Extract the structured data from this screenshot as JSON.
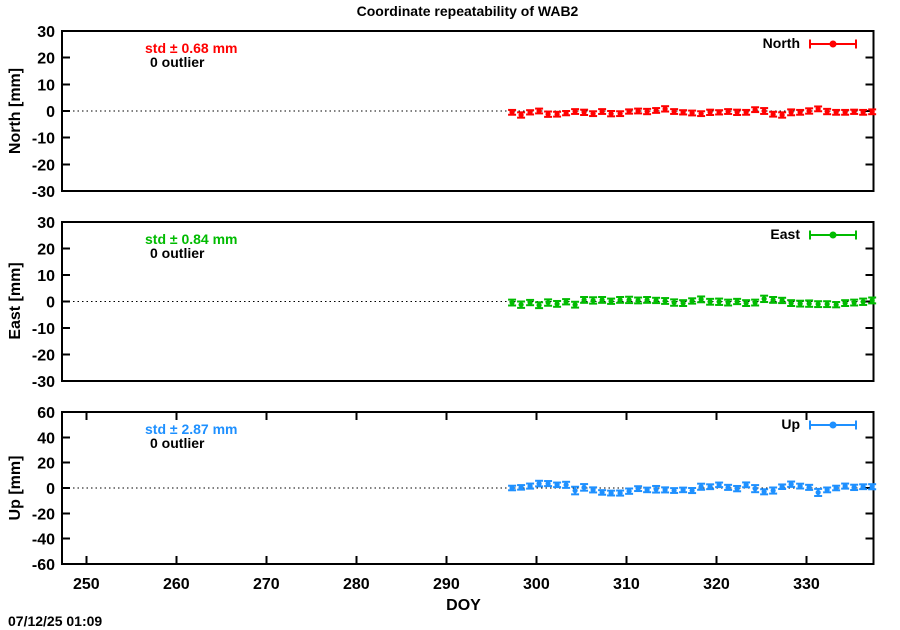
{
  "title": "Coordinate repeatability of WAB2",
  "xlabel": "DOY",
  "timestamp": "07/12/25 01:09",
  "chart_data": [
    {
      "type": "scatter",
      "name": "North",
      "ylabel": "North [mm]",
      "std_label": "std ± 0.68 mm",
      "outlier_label": "0 outlier",
      "color": "#ff0000",
      "ylim": [
        -30,
        30
      ],
      "yticks": [
        30,
        20,
        10,
        0,
        -10,
        -20,
        -30
      ],
      "xlim": [
        247.3,
        337.45
      ],
      "xticks": [
        250,
        260,
        270,
        280,
        290,
        300,
        310,
        320,
        330
      ],
      "x_start": 297.3,
      "x_step": 1.0,
      "values": [
        -0.5,
        -1.5,
        -0.5,
        0.0,
        -1.2,
        -1.2,
        -0.8,
        -0.2,
        -0.5,
        -1.0,
        -0.2,
        -1.0,
        -1.0,
        -0.2,
        0.0,
        -0.2,
        0.2,
        0.8,
        -0.2,
        -0.5,
        -0.75,
        -1.0,
        -0.5,
        -0.5,
        -0.2,
        -0.5,
        -0.5,
        0.5,
        0.0,
        -1.2,
        -1.5,
        -0.5,
        -0.5,
        0.0,
        0.8,
        -0.2,
        -0.5,
        -0.5,
        -0.3,
        -0.5,
        -0.3
      ],
      "errors": [
        0.9,
        1.0,
        0.8,
        0.9,
        1.0,
        0.9,
        0.8,
        0.9,
        1.0,
        0.9,
        0.9,
        1.0,
        0.9,
        0.8,
        0.9,
        1.0,
        0.9,
        1.0,
        0.9,
        0.8,
        0.9,
        0.9,
        1.0,
        0.8,
        0.9,
        1.0,
        0.9,
        0.9,
        1.1,
        0.9,
        1.0,
        1.1,
        0.9,
        1.0,
        0.9,
        1.0,
        0.9,
        0.9,
        0.8,
        0.9,
        0.9
      ]
    },
    {
      "type": "scatter",
      "name": "East",
      "ylabel": "East [mm]",
      "std_label": "std ± 0.84 mm",
      "outlier_label": "0 outlier",
      "color": "#00bb00",
      "ylim": [
        -30,
        30
      ],
      "yticks": [
        30,
        20,
        10,
        0,
        -10,
        -20,
        -30
      ],
      "xlim": [
        247.3,
        337.45
      ],
      "xticks": [
        250,
        260,
        270,
        280,
        290,
        300,
        310,
        320,
        330
      ],
      "x_start": 297.3,
      "x_step": 1.0,
      "values": [
        -0.4,
        -1.2,
        -0.4,
        -1.4,
        -0.4,
        -0.9,
        -0.1,
        -1.2,
        0.6,
        0.4,
        0.6,
        0.1,
        0.6,
        0.6,
        0.4,
        0.6,
        0.4,
        0.2,
        -0.4,
        -0.6,
        0.2,
        0.8,
        -0.1,
        -0.1,
        -0.4,
        0.0,
        -0.6,
        -0.4,
        1.0,
        0.6,
        0.4,
        -0.6,
        -0.8,
        -0.8,
        -1.0,
        -1.0,
        -1.2,
        -0.6,
        -0.4,
        -0.1,
        0.4
      ],
      "errors": [
        1.1,
        1.2,
        1.0,
        1.1,
        1.2,
        1.1,
        1.0,
        1.1,
        1.1,
        1.2,
        1.1,
        1.0,
        1.1,
        1.2,
        1.1,
        1.1,
        1.0,
        1.1,
        1.2,
        1.1,
        1.0,
        1.1,
        1.1,
        1.2,
        1.1,
        1.0,
        1.1,
        1.1,
        1.2,
        1.1,
        1.0,
        1.1,
        1.1,
        1.2,
        1.1,
        1.1,
        1.0,
        1.1,
        1.1,
        1.2,
        1.1
      ]
    },
    {
      "type": "scatter",
      "name": "Up",
      "ylabel": "Up [mm]",
      "std_label": "std ± 2.87 mm",
      "outlier_label": "0 outlier",
      "color": "#1e90ff",
      "ylim": [
        -60,
        60
      ],
      "yticks": [
        60,
        40,
        20,
        0,
        -20,
        -40,
        -60
      ],
      "xlim": [
        247.3,
        337.45
      ],
      "xticks": [
        250,
        260,
        270,
        280,
        290,
        300,
        310,
        320,
        330
      ],
      "x_start": 297.3,
      "x_step": 1.0,
      "values": [
        0.0,
        0.5,
        1.5,
        3.5,
        3.5,
        2.5,
        2.5,
        -2.0,
        0.5,
        -1.5,
        -3.5,
        -4.0,
        -4.0,
        -2.5,
        -0.5,
        -1.5,
        -1.0,
        -1.5,
        -2.0,
        -1.5,
        -2.0,
        1.0,
        1.0,
        2.5,
        0.5,
        -0.5,
        2.5,
        -0.5,
        -3.0,
        -2.0,
        1.0,
        3.0,
        1.5,
        0.5,
        -3.5,
        -1.5,
        0.0,
        1.5,
        0.5,
        1.0,
        1.0
      ],
      "errors": [
        1.8,
        1.8,
        2.0,
        2.2,
        2.0,
        1.8,
        2.4,
        3.0,
        2.6,
        2.0,
        1.8,
        1.9,
        2.0,
        2.1,
        1.9,
        1.8,
        2.6,
        2.0,
        1.9,
        1.8,
        2.0,
        2.4,
        1.9,
        1.8,
        2.0,
        2.1,
        1.9,
        2.8,
        2.0,
        2.4,
        1.8,
        2.1,
        1.9,
        2.0,
        2.8,
        1.9,
        1.8,
        2.0,
        2.1,
        1.9,
        2.0
      ]
    }
  ]
}
